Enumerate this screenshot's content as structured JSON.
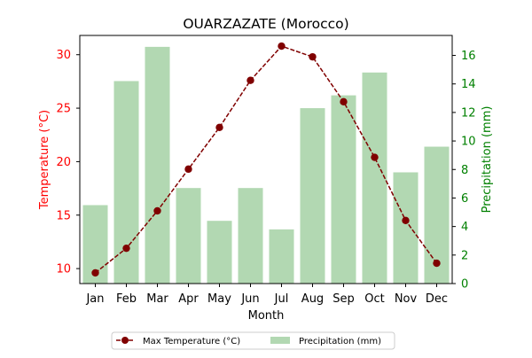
{
  "chart_data": {
    "type": "bar+line",
    "title": "OUARZAZATE (Morocco)",
    "xlabel": "Month",
    "ylabel_left": "Temperature (°C)",
    "ylabel_right": "Precipitation (mm)",
    "categories": [
      "Jan",
      "Feb",
      "Mar",
      "Apr",
      "May",
      "Jun",
      "Jul",
      "Aug",
      "Sep",
      "Oct",
      "Nov",
      "Dec"
    ],
    "series": [
      {
        "name": "Max Temperature (°C)",
        "type": "line",
        "axis": "left",
        "color": "#800000",
        "values": [
          9.6,
          11.9,
          15.4,
          19.3,
          23.2,
          27.6,
          30.8,
          29.8,
          25.6,
          20.4,
          14.5,
          10.5
        ]
      },
      {
        "name": "Precipitation (mm)",
        "type": "bar",
        "axis": "right",
        "color": "#b2d8b2",
        "values": [
          5.5,
          14.2,
          16.6,
          6.7,
          4.4,
          6.7,
          3.8,
          12.3,
          13.2,
          14.8,
          7.8,
          9.6
        ]
      }
    ],
    "ylim_left": [
      8.6,
      31.8
    ],
    "ylim_right": [
      0,
      17.4
    ],
    "yticks_left": [
      10,
      15,
      20,
      25,
      30
    ],
    "yticks_right": [
      0,
      2,
      4,
      6,
      8,
      10,
      12,
      14,
      16
    ],
    "left_axis_color": "#ff0000",
    "right_axis_color": "#008000",
    "legend_position": "bottom-center",
    "grid": false
  }
}
